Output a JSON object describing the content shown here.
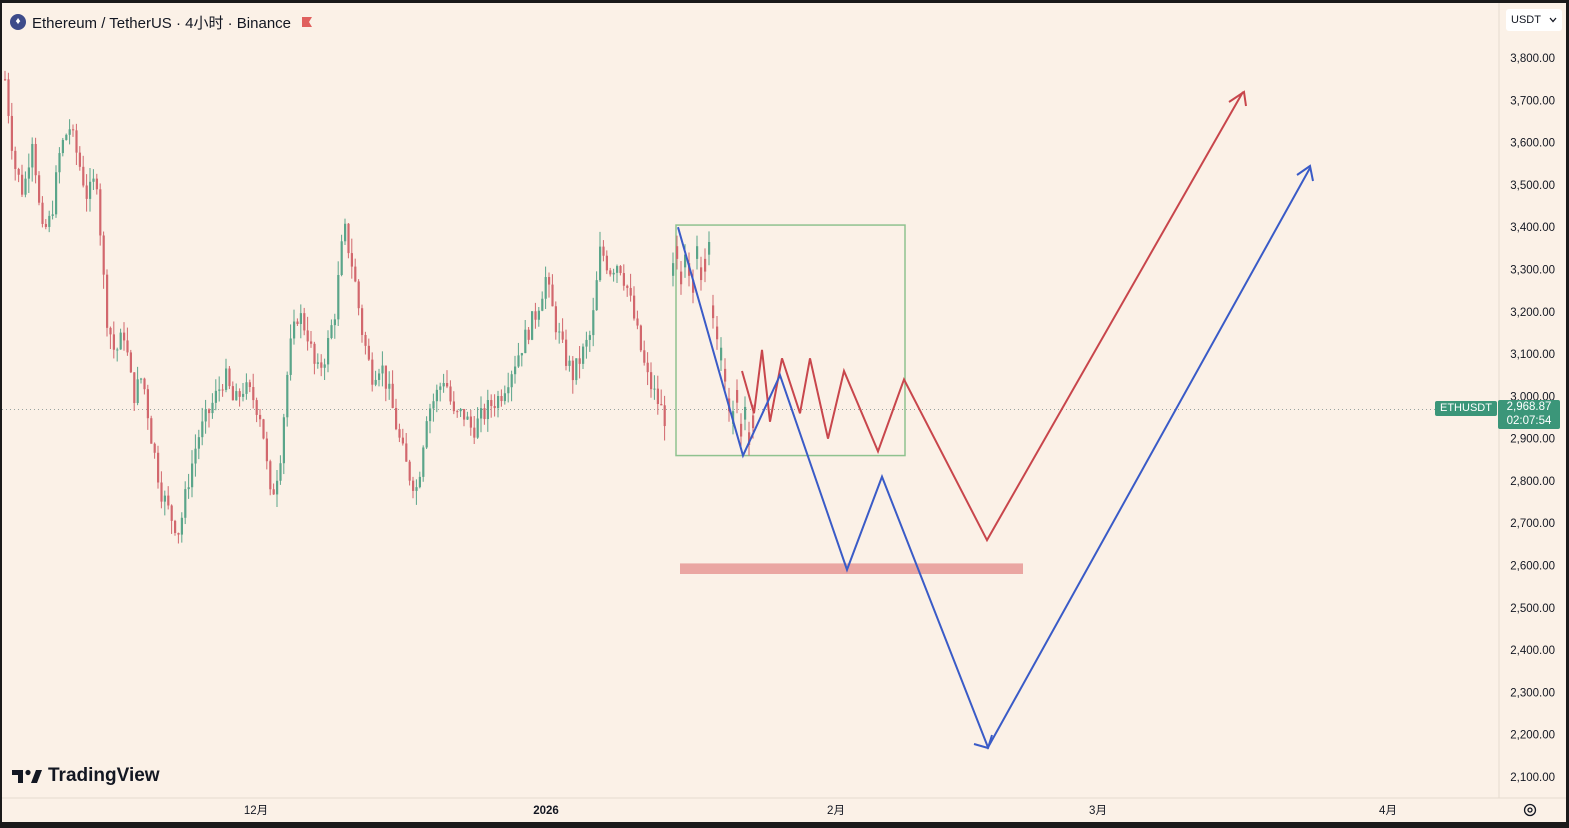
{
  "header": {
    "title": "Ethereum / TetherUS · 4小时 · Binance",
    "logo_icon": "ethereum-logo-icon",
    "flag_icon": "red-flag-icon",
    "flag_color": "#e0605e"
  },
  "currency_select": {
    "value": "USDT",
    "icon": "chevron-down-icon"
  },
  "price_label": {
    "symbol": "ETHUSDT",
    "price": "2,968.87",
    "countdown": "02:07:54",
    "color": "#3b9679"
  },
  "branding": {
    "name": "TradingView"
  },
  "colors": {
    "up": "#5aa58a",
    "down": "#d2676d",
    "red_path": "#c8464c",
    "blue_path": "#3a5bc7",
    "box": "#8fc28f",
    "zone": "#eaa6a2",
    "background": "#fbf1e7"
  },
  "chart_data": {
    "type": "candlestick",
    "symbol": "ETHUSDT",
    "timeframe": "4小时",
    "ylim": [
      2050,
      3860
    ],
    "y_ticks": [
      "3,800.00",
      "3,700.00",
      "3,600.00",
      "3,500.00",
      "3,400.00",
      "3,300.00",
      "3,200.00",
      "3,100.00",
      "3,000.00",
      "2,900.00",
      "2,800.00",
      "2,700.00",
      "2,600.00",
      "2,500.00",
      "2,400.00",
      "2,300.00",
      "2,200.00",
      "2,100.00"
    ],
    "x_ticks": [
      {
        "label": "12月",
        "bold": false
      },
      {
        "label": "2026",
        "bold": true
      },
      {
        "label": "2月",
        "bold": false
      },
      {
        "label": "3月",
        "bold": false
      },
      {
        "label": "4月",
        "bold": false
      }
    ],
    "price_path": [
      3750,
      3550,
      3480,
      3620,
      3380,
      3420,
      3580,
      3640,
      3560,
      3470,
      3520,
      3200,
      3100,
      3150,
      3000,
      3050,
      2900,
      2780,
      2720,
      2680,
      2800,
      2900,
      2950,
      3000,
      3050,
      2980,
      3020,
      3000,
      2950,
      2750,
      2850,
      3100,
      3200,
      3150,
      3050,
      3100,
      3200,
      3400,
      3300,
      3150,
      3050,
      3080,
      3000,
      2900,
      2820,
      2780,
      2960,
      3000,
      3050,
      2950,
      2960,
      2920,
      2950,
      2980,
      3000,
      3050,
      3100,
      3150,
      3200,
      3280,
      3180,
      3100,
      3050,
      3100,
      3150,
      3350,
      3300,
      3320,
      3250,
      3150,
      3050,
      3000,
      2950
    ],
    "box": {
      "start_index": 65,
      "end_price": 2860,
      "top_price": 3405,
      "width_fraction": 0.148
    },
    "support_zone": {
      "low": 2580,
      "high": 2605
    },
    "red_projection": [
      3060,
      2960,
      3110,
      2940,
      3090,
      2960,
      3090,
      2900,
      3060,
      2870,
      3040,
      2660,
      3720
    ],
    "blue_projection": [
      3400,
      2860,
      3050,
      2590,
      2810,
      2170,
      3540
    ]
  }
}
